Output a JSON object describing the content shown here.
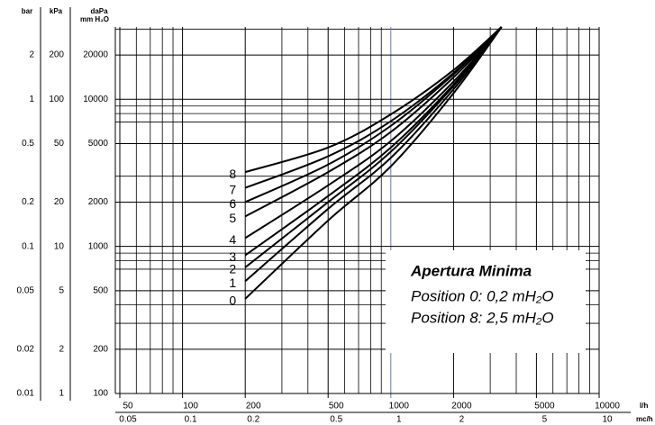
{
  "chart_data": {
    "type": "line",
    "x_label": "l/h",
    "x2_label": "mc/h",
    "y_label": "daPa",
    "y_label_sub": "mm H₂O",
    "log_x": true,
    "log_y": true,
    "grid": true,
    "xlim": [
      50,
      10000
    ],
    "xticks": [
      50,
      100,
      200,
      500,
      1000,
      2000,
      5000,
      10000
    ],
    "xminor": [
      60,
      70,
      80,
      90,
      300,
      400,
      600,
      700,
      800,
      900,
      3000,
      4000,
      6000,
      7000,
      8000,
      9000
    ],
    "xhighlight": 1000,
    "highlight_color": "#6a78b0",
    "x2ticks": [
      0.05,
      0.1,
      0.2,
      0.5,
      1,
      2,
      5,
      10
    ],
    "ylim": [
      100,
      31000
    ],
    "yticks": [
      100,
      200,
      500,
      1000,
      2000,
      5000,
      10000,
      20000
    ],
    "yminor": [
      300,
      400,
      700,
      800,
      900,
      3000,
      7000,
      8000,
      9000,
      30000
    ],
    "alt_y_scales": [
      {
        "name": "bar",
        "ticks": [
          0.01,
          0.02,
          0.05,
          0.1,
          0.2,
          0.5,
          1,
          2
        ]
      },
      {
        "name": "kPa",
        "ticks": [
          1,
          2,
          5,
          10,
          20,
          50,
          100,
          200
        ]
      }
    ],
    "x": [
      200,
      500,
      1000,
      2000,
      3400
    ],
    "series": [
      {
        "name": "0",
        "color": "#000000",
        "values": [
          440,
          1500,
          3500,
          11000,
          31000
        ]
      },
      {
        "name": "1",
        "color": "#000000",
        "values": [
          580,
          1800,
          4000,
          11700,
          31000
        ]
      },
      {
        "name": "2",
        "color": "#000000",
        "values": [
          720,
          2000,
          4400,
          12300,
          31000
        ]
      },
      {
        "name": "3",
        "color": "#000000",
        "values": [
          870,
          2200,
          4700,
          12600,
          31000
        ]
      },
      {
        "name": "4",
        "color": "#000000",
        "values": [
          1140,
          2600,
          5200,
          13200,
          31000
        ]
      },
      {
        "name": "5",
        "color": "#000000",
        "values": [
          1600,
          3200,
          6000,
          14100,
          31000
        ]
      },
      {
        "name": "6",
        "color": "#000000",
        "values": [
          2000,
          3600,
          6600,
          14800,
          31000
        ]
      },
      {
        "name": "7",
        "color": "#000000",
        "values": [
          2500,
          4100,
          7100,
          15100,
          31000
        ]
      },
      {
        "name": "8",
        "color": "#000000",
        "values": [
          3200,
          4700,
          7900,
          15800,
          31000
        ]
      }
    ],
    "annotation": {
      "title": "Apertura Minima",
      "lines": [
        "Position 0: 0,2 mH₂O",
        "Position 8: 2,5 mH₂O"
      ]
    }
  }
}
